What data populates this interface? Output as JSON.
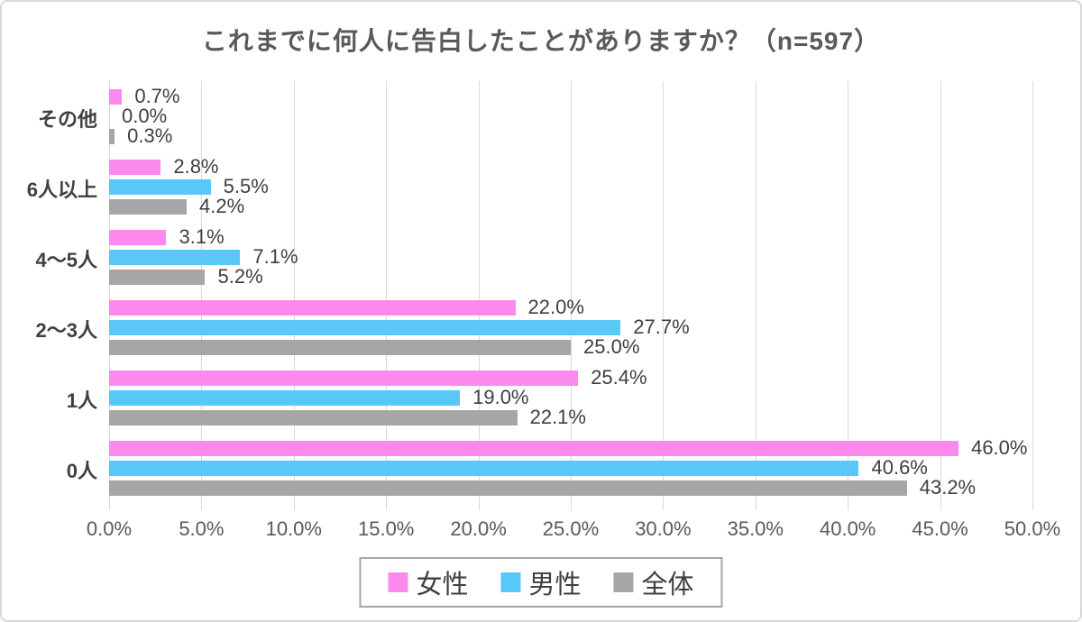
{
  "title": "これまでに何人に告白したことがありますか？（n=597）",
  "colors": {
    "female": "#FB8AEC",
    "male": "#59C7F7",
    "overall": "#A6A6A6",
    "title_text": "#595959",
    "category_text": "#404040",
    "value_text": "#3F3F3F",
    "axis_text": "#595959",
    "gridline": "#D9D9D9",
    "legend_border": "#A6A6A6",
    "canvas_border": "#D9D9D9"
  },
  "chart_data": {
    "type": "bar",
    "orientation": "horizontal",
    "title": "これまでに何人に告白したことがありますか？（n=597）",
    "categories": [
      "その他",
      "6人以上",
      "4～5人",
      "2～3人",
      "1人",
      "0人"
    ],
    "series": [
      {
        "name": "女性",
        "color": "#FB8AEC",
        "values": [
          0.7,
          2.8,
          3.1,
          22.0,
          25.4,
          46.0
        ],
        "labels": [
          "0.7%",
          "2.8%",
          "3.1%",
          "22.0%",
          "25.4%",
          "46.0%"
        ]
      },
      {
        "name": "男性",
        "color": "#59C7F7",
        "values": [
          0.0,
          5.5,
          7.1,
          27.7,
          19.0,
          40.6
        ],
        "labels": [
          "0.0%",
          "5.5%",
          "7.1%",
          "27.7%",
          "19.0%",
          "40.6%"
        ]
      },
      {
        "name": "全体",
        "color": "#A6A6A6",
        "values": [
          0.3,
          4.2,
          5.2,
          25.0,
          22.1,
          43.2
        ],
        "labels": [
          "0.3%",
          "4.2%",
          "5.2%",
          "25.0%",
          "22.1%",
          "43.2%"
        ]
      }
    ],
    "xlabel": "",
    "ylabel": "",
    "xlim": [
      0,
      50
    ],
    "x_tick_labels": [
      "0.0%",
      "5.0%",
      "10.0%",
      "15.0%",
      "20.0%",
      "25.0%",
      "30.0%",
      "35.0%",
      "40.0%",
      "45.0%",
      "50.0%"
    ],
    "grid": "vertical",
    "legend_position": "bottom",
    "legend_entries": [
      "女性",
      "男性",
      "全体"
    ]
  }
}
